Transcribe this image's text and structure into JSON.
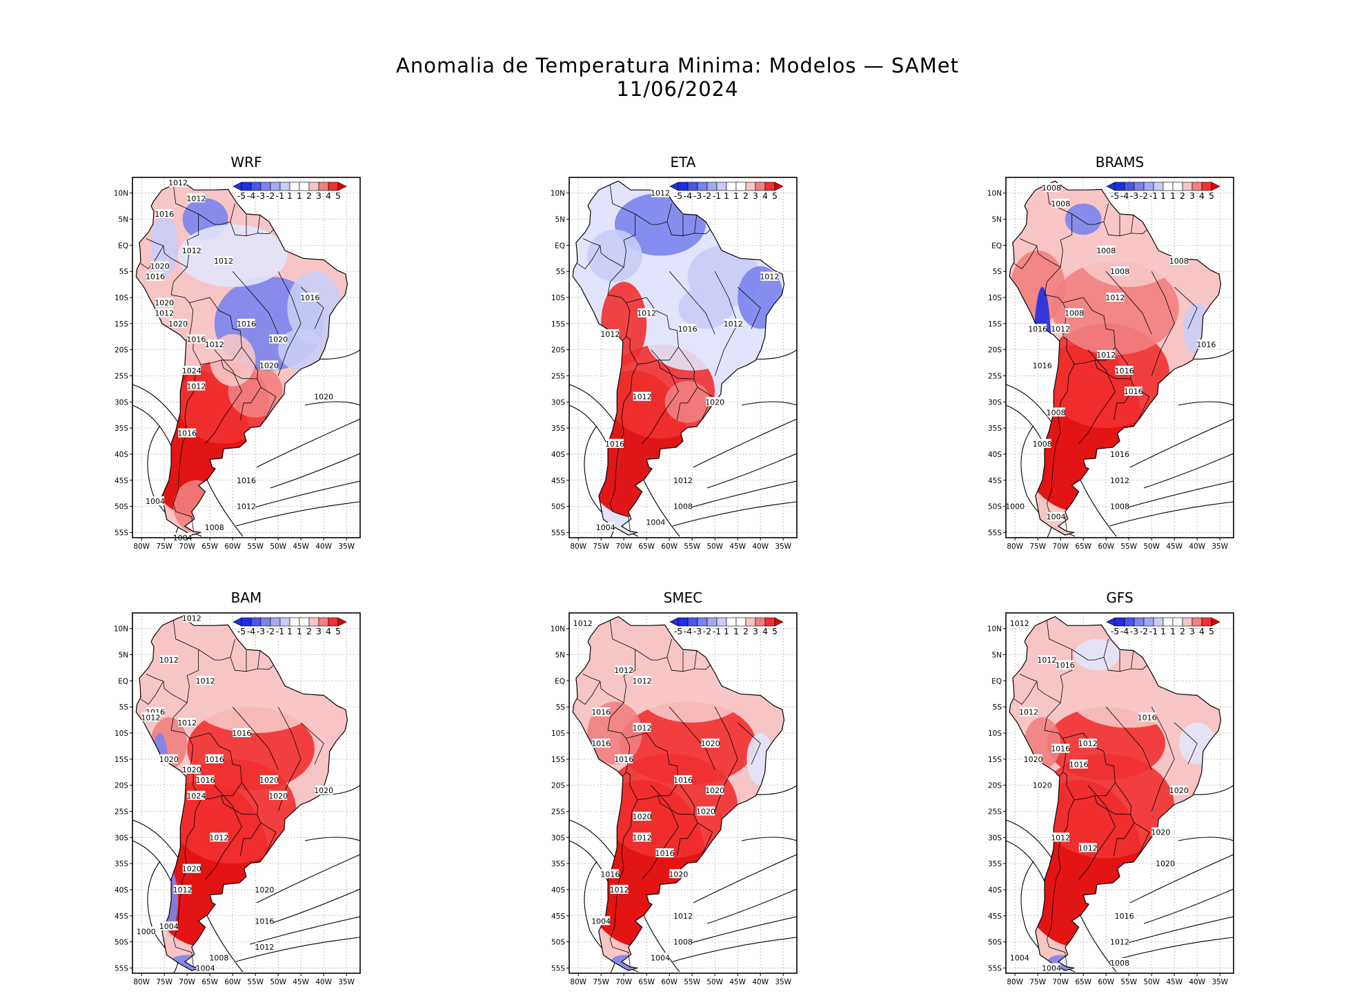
{
  "title": {
    "line1": "Anomalia de Temperatura Minima: Modelos — SAMet",
    "line2": "11/06/2024"
  },
  "colors": {
    "blue_strong": "#1f2fe0",
    "blue_mid": "#7b84ec",
    "blue_light": "#c9ccf6",
    "white": "#ffffff",
    "red_light": "#f7c5c5",
    "red_mid": "#f08080",
    "red_strong": "#f03030",
    "red_deep": "#e00000",
    "ocean": "#ffffff",
    "land_outline": "#000000"
  },
  "axes": {
    "lat_labels": [
      "10N",
      "5N",
      "EQ",
      "5S",
      "10S",
      "15S",
      "20S",
      "25S",
      "30S",
      "35S",
      "40S",
      "45S",
      "50S",
      "55S"
    ],
    "lon_labels": [
      "80W",
      "75W",
      "70W",
      "65W",
      "60W",
      "55W",
      "50W",
      "45W",
      "40W",
      "35W"
    ]
  },
  "colorbar": {
    "labels": [
      "-5",
      "-4",
      "-3",
      "-2",
      "-1",
      "1",
      "1",
      "2",
      "3",
      "4",
      "5"
    ]
  },
  "chart_data": [
    {
      "type": "heatmap",
      "model": "WRF",
      "variable": "Anomalia de Temperatura Minima",
      "colorbar_range": [
        -5,
        5
      ],
      "isobars": [
        "1012",
        "1012",
        "1016",
        "1012",
        "1020",
        "1016",
        "1012",
        "1020",
        "1012",
        "1016",
        "1016",
        "1020",
        "1016",
        "1012",
        "1020",
        "1020",
        "1024",
        "1012",
        "1020",
        "1016",
        "1004",
        "1016",
        "1012",
        "1008",
        "1004"
      ]
    },
    {
      "type": "heatmap",
      "model": "ETA",
      "variable": "Anomalia de Temperatura Minima",
      "colorbar_range": [
        -5,
        5
      ],
      "isobars": [
        "1012",
        "1012",
        "1012",
        "1016",
        "1012",
        "1012",
        "1020",
        "1012",
        "1016",
        "1012",
        "1008",
        "1004",
        "1004"
      ]
    },
    {
      "type": "heatmap",
      "model": "BRAMS",
      "variable": "Anomalia de Temperatura Minima",
      "colorbar_range": [
        -5,
        5
      ],
      "isobars": [
        "1008",
        "1008",
        "1008",
        "1008",
        "1008",
        "1008",
        "1012",
        "1016",
        "1012",
        "1016",
        "1012",
        "1016",
        "1016",
        "1016",
        "1008",
        "1008",
        "1016",
        "1012",
        "1000",
        "1004",
        "1008"
      ]
    },
    {
      "type": "heatmap",
      "model": "BAM",
      "variable": "Anomalia de Temperatura Minima",
      "colorbar_range": [
        -5,
        5
      ],
      "isobars": [
        "1012",
        "1012",
        "1012",
        "1016",
        "1012",
        "1012",
        "1016",
        "1020",
        "1020",
        "1016",
        "1016",
        "1020",
        "1024",
        "1020",
        "1020",
        "1012",
        "1020",
        "1012",
        "1020",
        "1016",
        "1000",
        "1004",
        "1012",
        "1008",
        "1004"
      ]
    },
    {
      "type": "heatmap",
      "model": "SMEC",
      "variable": "Anomalia de Temperatura Minima",
      "colorbar_range": [
        -5,
        5
      ],
      "isobars": [
        "1012",
        "1012",
        "1012",
        "1016",
        "1012",
        "1016",
        "1016",
        "1020",
        "1016",
        "1020",
        "1020",
        "1020",
        "1012",
        "1016",
        "1020",
        "1012",
        "1016",
        "1004",
        "1012",
        "1008",
        "1004"
      ]
    },
    {
      "type": "heatmap",
      "model": "GFS",
      "variable": "Anomalia de Temperatura Minima",
      "colorbar_range": [
        -5,
        5
      ],
      "isobars": [
        "1012",
        "1012",
        "1016",
        "1012",
        "1016",
        "1012",
        "1020",
        "1016",
        "1016",
        "1020",
        "1020",
        "1012",
        "1012",
        "1020",
        "1020",
        "1016",
        "1012",
        "1004",
        "1008",
        "1004"
      ]
    }
  ]
}
